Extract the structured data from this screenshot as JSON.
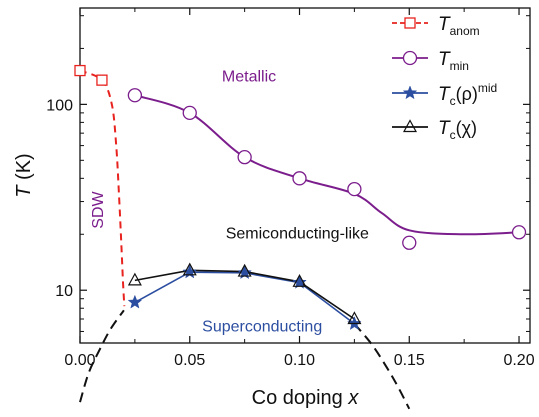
{
  "chart_data": {
    "type": "line",
    "xlabel": {
      "prefix": "Co doping ",
      "var": "x"
    },
    "ylabel": {
      "var": "T",
      "unit": " (K)"
    },
    "xlim": [
      0.0,
      0.205
    ],
    "ylim": [
      5.2,
      330
    ],
    "yscale": "log",
    "x_ticks": [
      0.0,
      0.05,
      0.1,
      0.15,
      0.2
    ],
    "x_tick_labels": [
      "0.00",
      "0.05",
      "0.10",
      "0.15",
      "0.20"
    ],
    "y_ticks": [
      10,
      100
    ],
    "y_tick_labels": [
      "10",
      "100"
    ],
    "legend_position": "top-right",
    "series": [
      {
        "key": "anom",
        "legend_main": "T",
        "legend_sub": "anom",
        "legend_sup": "",
        "color": "#e8231f",
        "marker": "square-open",
        "line": "dashed",
        "x": [
          0.0,
          0.01
        ],
        "y": [
          152,
          135
        ],
        "curve_x": [
          0.0,
          0.01,
          0.0145,
          0.0165,
          0.0178,
          0.0188,
          0.0196,
          0.0202
        ],
        "curve_y": [
          152,
          135,
          100,
          60,
          32,
          18,
          11,
          8.2
        ]
      },
      {
        "key": "tmin",
        "legend_main": "T",
        "legend_sub": "min",
        "legend_sup": "",
        "color": "#7b1d8c",
        "marker": "circle-open",
        "line": "solid-smooth",
        "x": [
          0.025,
          0.05,
          0.075,
          0.1,
          0.125,
          0.15,
          0.2
        ],
        "y": [
          112,
          90,
          52,
          40,
          35,
          18,
          20.5
        ],
        "curve_x": [
          0.025,
          0.05,
          0.075,
          0.1,
          0.125,
          0.1375,
          0.15,
          0.175,
          0.2
        ],
        "curve_y": [
          112,
          90,
          52,
          40,
          33,
          26,
          21,
          20,
          20.5
        ]
      },
      {
        "key": "tc_rho",
        "legend_main": "T",
        "legend_sub": "c",
        "legend_paren": "(ρ)",
        "legend_sup": "mid",
        "color": "#2c4ea0",
        "marker": "star-filled",
        "line": "solid",
        "x": [
          0.025,
          0.05,
          0.075,
          0.1,
          0.125
        ],
        "y": [
          8.6,
          12.5,
          12.4,
          11.0,
          6.6
        ]
      },
      {
        "key": "tc_chi",
        "legend_main": "T",
        "legend_sub": "c",
        "legend_paren": "(χ)",
        "legend_sup": "",
        "color": "#111111",
        "marker": "triangle-open",
        "line": "solid",
        "x": [
          0.025,
          0.05,
          0.075,
          0.1,
          0.125
        ],
        "y": [
          11.3,
          12.8,
          12.6,
          11.1,
          7.0
        ]
      }
    ],
    "dome_boundary": {
      "color": "#111111",
      "line": "dashed",
      "left_x": [
        0.0,
        0.004,
        0.009,
        0.014,
        0.02
      ],
      "left_y": [
        2.5,
        3.6,
        4.8,
        6.2,
        7.8
      ],
      "right_x": [
        0.125,
        0.133,
        0.14,
        0.145,
        0.15
      ],
      "right_y": [
        6.6,
        5.1,
        3.8,
        3.0,
        2.3
      ]
    },
    "annotations": [
      {
        "key": "metallic",
        "text": "Metallic",
        "color": "#7b1d8c",
        "x": 0.077,
        "y": 140,
        "rotate": 0
      },
      {
        "key": "semiconducting",
        "text": "Semiconducting-like",
        "color": "#111111",
        "x": 0.099,
        "y": 20,
        "rotate": 0
      },
      {
        "key": "superconducting",
        "text": "Superconducting",
        "color": "#2c4ea0",
        "x": 0.083,
        "y": 6.3,
        "rotate": 0
      },
      {
        "key": "sdw",
        "text": "SDW",
        "color": "#7b1d8c",
        "x": 0.0085,
        "y": 27,
        "rotate": -90
      }
    ]
  }
}
